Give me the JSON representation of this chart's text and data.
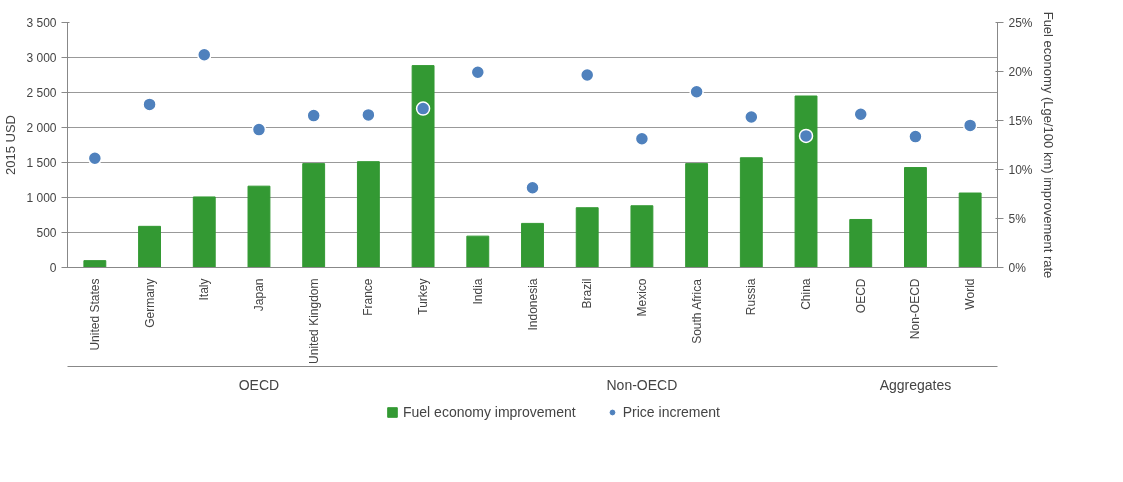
{
  "chart_data": {
    "type": "bar",
    "ylabel": "2015 USD",
    "y2label": "Fuel economy (Lge/100 km) improvement rate",
    "categories": [
      "United States",
      "Germany",
      "Italy",
      "Japan",
      "United Kingdom",
      "France",
      "Turkey",
      "India",
      "Indonesia",
      "Brazil",
      "Mexico",
      "South Africa",
      "Russia",
      "China",
      "OECD",
      "Non-OECD",
      "World"
    ],
    "series": [
      {
        "name": "Fuel economy improvement",
        "axis": "y2",
        "color": "#339933",
        "values": [
          0.7,
          4.2,
          7.2,
          8.3,
          10.6,
          10.8,
          20.6,
          3.2,
          4.5,
          6.1,
          6.3,
          10.6,
          11.2,
          17.5,
          4.9,
          10.2,
          7.6
        ]
      },
      {
        "name": "Price increment",
        "type": "scatter",
        "color": "#4f81bd",
        "values": [
          1560,
          2330,
          3040,
          1970,
          2170,
          2180,
          2270,
          2790,
          1140,
          2750,
          1840,
          2510,
          2150,
          1880,
          2190,
          1870,
          2030
        ]
      }
    ],
    "ylim": [
      0,
      3500
    ],
    "yticks": [
      0,
      500,
      {
        "value": 1000,
        "label": "1 000"
      },
      {
        "value": 1500,
        "label": "1 500"
      },
      {
        "value": 2000,
        "label": "2 000"
      },
      {
        "value": 2500,
        "label": "2 500"
      },
      {
        "value": 3000,
        "label": "3 000"
      },
      {
        "value": 3500,
        "label": "3 500"
      }
    ],
    "y2lim": [
      0,
      25
    ],
    "y2ticks": [
      {
        "value": 0,
        "label": "0%"
      },
      {
        "value": 5,
        "label": "5%"
      },
      {
        "value": 10,
        "label": "10%"
      },
      {
        "value": 15,
        "label": "15%"
      },
      {
        "value": 20,
        "label": "20%"
      },
      {
        "value": 25,
        "label": "25%"
      }
    ],
    "annotations": [
      "OECD",
      "Non-OECD",
      "Aggregates"
    ],
    "grid": "y",
    "legend": "bottom",
    "marker": "circle"
  }
}
